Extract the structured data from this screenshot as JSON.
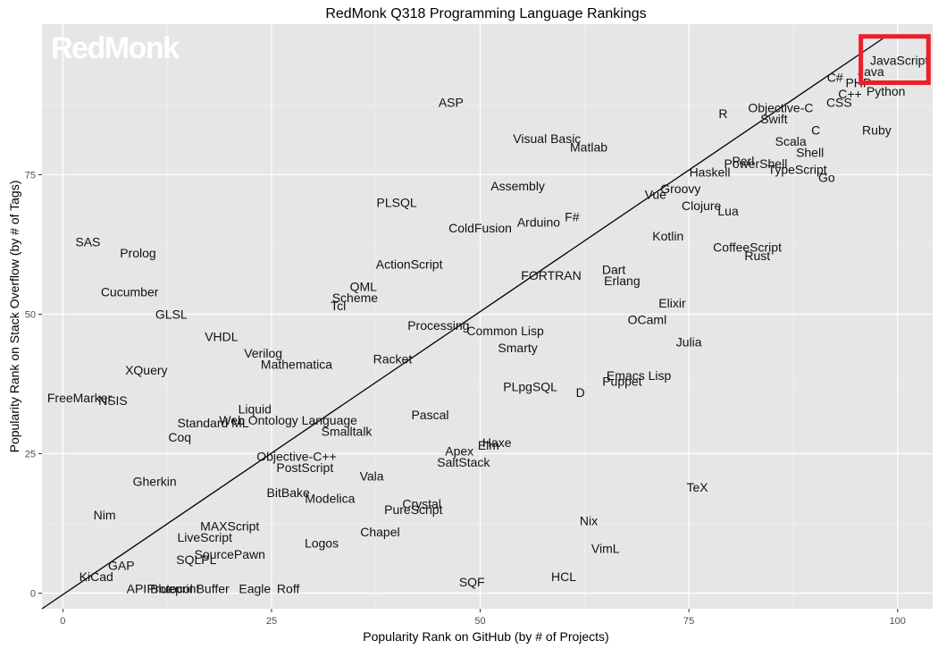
{
  "watermark": "RedMonk",
  "colors": {
    "panel_background": "#e6e6e6",
    "grid_major": "#ffffff",
    "grid_minor": "#f2f2f2",
    "trend_line": "#000000",
    "highlight_box": "#e8202a",
    "label_text": "#111111"
  },
  "chart_data": {
    "type": "scatter",
    "title": "RedMonk Q318 Programming Language Rankings",
    "xlabel": "Popularity Rank on GitHub (by # of Projects)",
    "ylabel": "Popularity Rank on Stack Overflow (by # of Tags)",
    "xlim": [
      -2.5,
      104.2
    ],
    "ylim": [
      -2.8,
      102.0
    ],
    "xticks": [
      0,
      25,
      50,
      75,
      100
    ],
    "yticks": [
      0,
      25,
      50,
      75
    ],
    "grid": true,
    "trend_line": {
      "from": [
        -2.5,
        -2.8
      ],
      "to": [
        98.8,
        100.0
      ]
    },
    "highlight": {
      "x": [
        95.6,
        103.7
      ],
      "y": [
        91.5,
        99.8
      ]
    },
    "points": [
      {
        "label": "JavaScript",
        "x": 100.2,
        "y": 95.5
      },
      {
        "label": "Java",
        "x": 96.8,
        "y": 93.5
      },
      {
        "label": "C#",
        "x": 92.5,
        "y": 92.5
      },
      {
        "label": "PHP",
        "x": 95.3,
        "y": 91.5
      },
      {
        "label": "Python",
        "x": 98.6,
        "y": 90.0
      },
      {
        "label": "C++",
        "x": 94.3,
        "y": 89.5
      },
      {
        "label": "CSS",
        "x": 93.0,
        "y": 88.0
      },
      {
        "label": "R",
        "x": 79.1,
        "y": 86.0
      },
      {
        "label": "Objective-C",
        "x": 86.0,
        "y": 87.0
      },
      {
        "label": "Swift",
        "x": 85.2,
        "y": 85.0
      },
      {
        "label": "C",
        "x": 90.2,
        "y": 83.0
      },
      {
        "label": "Ruby",
        "x": 97.5,
        "y": 83.0
      },
      {
        "label": "Scala",
        "x": 87.2,
        "y": 81.0
      },
      {
        "label": "Shell",
        "x": 89.5,
        "y": 79.0
      },
      {
        "label": "Perl",
        "x": 81.5,
        "y": 77.5
      },
      {
        "label": "PowerShell",
        "x": 83.0,
        "y": 77.0
      },
      {
        "label": "TypeScript",
        "x": 88.0,
        "y": 76.0
      },
      {
        "label": "Haskell",
        "x": 77.5,
        "y": 75.5
      },
      {
        "label": "Go",
        "x": 91.5,
        "y": 74.5
      },
      {
        "label": "Groovy",
        "x": 74.0,
        "y": 72.5
      },
      {
        "label": "Vue",
        "x": 71.0,
        "y": 71.5
      },
      {
        "label": "Clojure",
        "x": 76.5,
        "y": 69.5
      },
      {
        "label": "Lua",
        "x": 79.7,
        "y": 68.5
      },
      {
        "label": "Visual Basic",
        "x": 58.0,
        "y": 81.5
      },
      {
        "label": "Matlab",
        "x": 63.0,
        "y": 80.0
      },
      {
        "label": "ASP",
        "x": 46.5,
        "y": 88.0
      },
      {
        "label": "Assembly",
        "x": 54.5,
        "y": 73.0
      },
      {
        "label": "PLSQL",
        "x": 40.0,
        "y": 70.0
      },
      {
        "label": "F#",
        "x": 61.0,
        "y": 67.5
      },
      {
        "label": "Arduino",
        "x": 57.0,
        "y": 66.5
      },
      {
        "label": "ColdFusion",
        "x": 50.0,
        "y": 65.5
      },
      {
        "label": "Kotlin",
        "x": 72.5,
        "y": 64.0
      },
      {
        "label": "CoffeeScript",
        "x": 82.0,
        "y": 62.0
      },
      {
        "label": "Rust",
        "x": 83.2,
        "y": 60.5
      },
      {
        "label": "SAS",
        "x": 3.0,
        "y": 63.0
      },
      {
        "label": "Prolog",
        "x": 9.0,
        "y": 61.0
      },
      {
        "label": "ActionScript",
        "x": 41.5,
        "y": 59.0
      },
      {
        "label": "FORTRAN",
        "x": 58.5,
        "y": 57.0
      },
      {
        "label": "Dart",
        "x": 66.0,
        "y": 58.0
      },
      {
        "label": "Erlang",
        "x": 67.0,
        "y": 56.0
      },
      {
        "label": "Cucumber",
        "x": 8.0,
        "y": 54.0
      },
      {
        "label": "QML",
        "x": 36.0,
        "y": 55.0
      },
      {
        "label": "Scheme",
        "x": 35.0,
        "y": 53.0
      },
      {
        "label": "Tcl",
        "x": 33.0,
        "y": 51.5
      },
      {
        "label": "Elixir",
        "x": 73.0,
        "y": 52.0
      },
      {
        "label": "GLSL",
        "x": 13.0,
        "y": 50.0
      },
      {
        "label": "OCaml",
        "x": 70.0,
        "y": 49.0
      },
      {
        "label": "Processing",
        "x": 45.0,
        "y": 48.0
      },
      {
        "label": "Common Lisp",
        "x": 53.0,
        "y": 47.0
      },
      {
        "label": "VHDL",
        "x": 19.0,
        "y": 46.0
      },
      {
        "label": "Julia",
        "x": 75.0,
        "y": 45.0
      },
      {
        "label": "Smarty",
        "x": 54.5,
        "y": 44.0
      },
      {
        "label": "Verilog",
        "x": 24.0,
        "y": 43.0
      },
      {
        "label": "Racket",
        "x": 39.5,
        "y": 42.0
      },
      {
        "label": "Mathematica",
        "x": 28.0,
        "y": 41.0
      },
      {
        "label": "XQuery",
        "x": 10.0,
        "y": 40.0
      },
      {
        "label": "Emacs Lisp",
        "x": 69.0,
        "y": 39.0
      },
      {
        "label": "Puppet",
        "x": 67.0,
        "y": 38.0
      },
      {
        "label": "PLpgSQL",
        "x": 56.0,
        "y": 37.0
      },
      {
        "label": "D",
        "x": 62.0,
        "y": 36.0
      },
      {
        "label": "FreeMarker",
        "x": 2.0,
        "y": 35.0
      },
      {
        "label": "NSIS",
        "x": 6.0,
        "y": 34.5
      },
      {
        "label": "Liquid",
        "x": 23.0,
        "y": 33.0
      },
      {
        "label": "Pascal",
        "x": 44.0,
        "y": 32.0
      },
      {
        "label": "Web Ontology Language",
        "x": 27.0,
        "y": 31.0
      },
      {
        "label": "Standard ML",
        "x": 18.0,
        "y": 30.5
      },
      {
        "label": "Smalltalk",
        "x": 34.0,
        "y": 29.0
      },
      {
        "label": "Coq",
        "x": 14.0,
        "y": 28.0
      },
      {
        "label": "Haxe",
        "x": 52.0,
        "y": 27.0
      },
      {
        "label": "Elm",
        "x": 51.0,
        "y": 26.5
      },
      {
        "label": "Apex",
        "x": 47.5,
        "y": 25.5
      },
      {
        "label": "SaltStack",
        "x": 48.0,
        "y": 23.5
      },
      {
        "label": "Objective-C++",
        "x": 28.0,
        "y": 24.5
      },
      {
        "label": "PostScript",
        "x": 29.0,
        "y": 22.5
      },
      {
        "label": "Vala",
        "x": 37.0,
        "y": 21.0
      },
      {
        "label": "Gherkin",
        "x": 11.0,
        "y": 20.0
      },
      {
        "label": "TeX",
        "x": 76.0,
        "y": 19.0
      },
      {
        "label": "BitBake",
        "x": 27.0,
        "y": 18.0
      },
      {
        "label": "Modelica",
        "x": 32.0,
        "y": 17.0
      },
      {
        "label": "Crystal",
        "x": 43.0,
        "y": 16.0
      },
      {
        "label": "PureScript",
        "x": 42.0,
        "y": 15.0
      },
      {
        "label": "Nim",
        "x": 5.0,
        "y": 14.0
      },
      {
        "label": "Nix",
        "x": 63.0,
        "y": 13.0
      },
      {
        "label": "MAXScript",
        "x": 20.0,
        "y": 12.0
      },
      {
        "label": "Chapel",
        "x": 38.0,
        "y": 11.0
      },
      {
        "label": "LiveScript",
        "x": 17.0,
        "y": 10.0
      },
      {
        "label": "Logos",
        "x": 31.0,
        "y": 9.0
      },
      {
        "label": "VimL",
        "x": 65.0,
        "y": 8.0
      },
      {
        "label": "SourcePawn",
        "x": 20.0,
        "y": 7.0
      },
      {
        "label": "SQLPL",
        "x": 16.0,
        "y": 6.0
      },
      {
        "label": "GAP",
        "x": 7.0,
        "y": 5.0
      },
      {
        "label": "KiCad",
        "x": 4.0,
        "y": 3.0
      },
      {
        "label": "HCL",
        "x": 60.0,
        "y": 3.0
      },
      {
        "label": "SQF",
        "x": 49.0,
        "y": 2.0
      },
      {
        "label": "API Blueprint",
        "x": 12.0,
        "y": 0.8
      },
      {
        "label": "Protocol Buffer",
        "x": 15.0,
        "y": 0.8
      },
      {
        "label": "Eagle",
        "x": 23.0,
        "y": 0.8
      },
      {
        "label": "Roff",
        "x": 27.0,
        "y": 0.8
      }
    ]
  }
}
